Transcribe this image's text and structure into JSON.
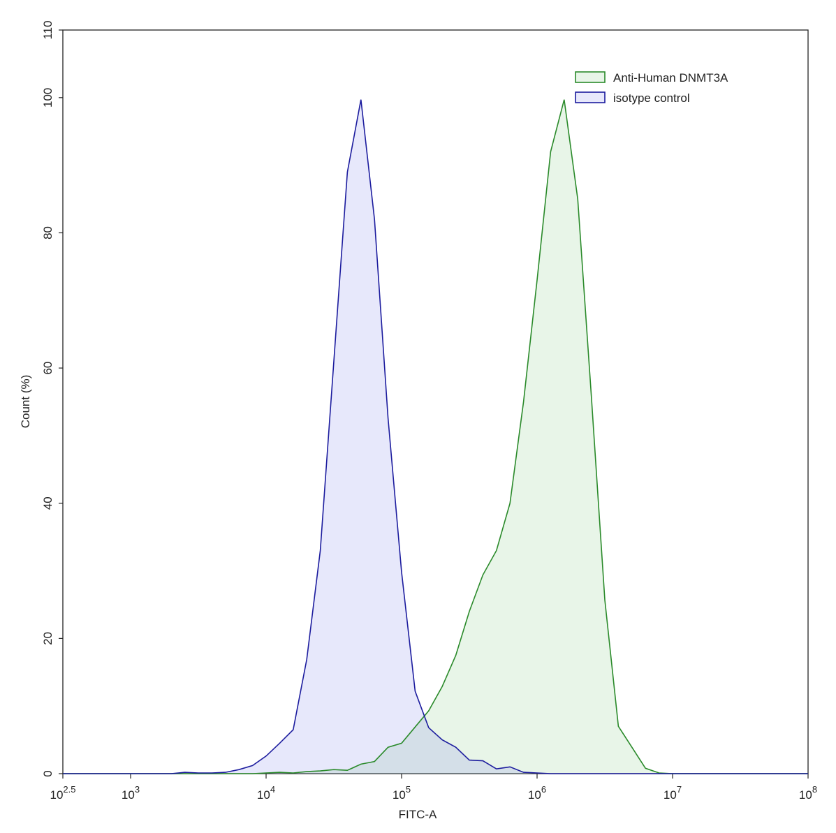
{
  "chart_data": {
    "type": "histogram-overlay",
    "xlabel": "FITC-A",
    "ylabel": "Count  (%)",
    "xscale": "log",
    "xlim": [
      316.23,
      100000000
    ],
    "ylim": [
      0,
      110
    ],
    "xticks": [
      {
        "value": 316.23,
        "label": "10^2.5"
      },
      {
        "value": 1000,
        "label": "10^3"
      },
      {
        "value": 10000,
        "label": "10^4"
      },
      {
        "value": 100000,
        "label": "10^5"
      },
      {
        "value": 1000000,
        "label": "10^6"
      },
      {
        "value": 10000000,
        "label": "10^7"
      },
      {
        "value": 100000000,
        "label": "10^8"
      }
    ],
    "yticks": [
      0,
      20,
      40,
      60,
      80,
      100,
      110
    ],
    "legend": "upper right",
    "x": [
      316.23,
      1000,
      1259,
      1585,
      1995,
      2512,
      3162,
      3981,
      5012,
      6310,
      7943,
      10000,
      12589,
      15849,
      19953,
      25119,
      31623,
      39811,
      50119,
      63096,
      79433,
      100000,
      125893,
      158489,
      199526,
      251189,
      316228,
      398107,
      501187,
      630957,
      794328,
      1000000,
      1258925,
      1584893,
      1995262,
      2511886,
      3162278,
      3981072,
      5011872,
      6309573,
      7943282,
      10000000,
      100000000
    ],
    "series": [
      {
        "name": "Anti-Human DNMT3A",
        "color": "#2a8a2a",
        "fill": "rgba(110,190,110,0.16)",
        "values": [
          0,
          0,
          0,
          0,
          0,
          0,
          0,
          0,
          0,
          0,
          0,
          0.1,
          0.2,
          0.1,
          0.3,
          0.4,
          0.6,
          0.5,
          1.4,
          1.8,
          3.9,
          4.5,
          6.9,
          9.3,
          12.9,
          17.5,
          24,
          29.4,
          33,
          40,
          55,
          73,
          92,
          99.7,
          85,
          56,
          25.7,
          7,
          3.9,
          0.8,
          0.1,
          0,
          0
        ]
      },
      {
        "name": "isotype control",
        "color": "#1c1c9e",
        "fill": "rgba(120,130,235,0.18)",
        "values": [
          0,
          0,
          0,
          0,
          0,
          0.2,
          0.1,
          0.1,
          0.2,
          0.6,
          1.2,
          2.6,
          4.5,
          6.5,
          16.9,
          33,
          61,
          89,
          99.7,
          82,
          52.6,
          29.8,
          12.2,
          6.8,
          5,
          3.9,
          2,
          1.9,
          0.7,
          1,
          0.2,
          0.1,
          0,
          0,
          0,
          0,
          0,
          0,
          0,
          0,
          0,
          0,
          0
        ]
      }
    ]
  }
}
